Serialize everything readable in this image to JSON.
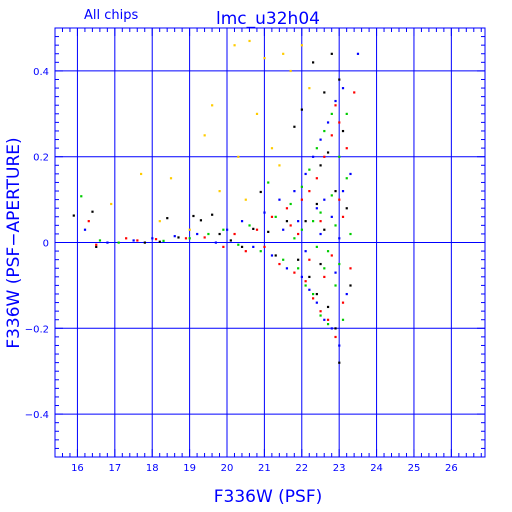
{
  "chart_data": {
    "type": "scatter",
    "title": "lmc_u32h04",
    "subtitle": "All chips",
    "xlabel": "F336W (PSF)",
    "ylabel": "F336W (PSF−APERTURE)",
    "xlim": [
      15.4,
      26.9
    ],
    "ylim": [
      -0.5,
      0.5
    ],
    "xticks": [
      16,
      17,
      18,
      19,
      20,
      21,
      22,
      23,
      24,
      25,
      26
    ],
    "xtick_labels": [
      "16",
      "17",
      "18",
      "19",
      "20",
      "21",
      "22",
      "23",
      "24",
      "25",
      "26"
    ],
    "yticks": [
      -0.4,
      -0.2,
      0,
      0.2,
      0.4
    ],
    "ytick_labels": [
      "−0.4",
      "−0.2",
      "0",
      "0.2",
      "0.4"
    ],
    "grid": true,
    "frame_color": "#0000ff",
    "series": [
      {
        "color": "#000000",
        "points": [
          [
            15.9,
            0.063
          ],
          [
            16.4,
            0.072
          ],
          [
            16.5,
            -0.01
          ],
          [
            17.8,
            0.0
          ],
          [
            18.2,
            0.002
          ],
          [
            18.4,
            0.057
          ],
          [
            18.7,
            0.012
          ],
          [
            19.1,
            0.062
          ],
          [
            19.3,
            0.052
          ],
          [
            19.6,
            0.065
          ],
          [
            19.8,
            0.02
          ],
          [
            20.1,
            0.005
          ],
          [
            20.4,
            -0.01
          ],
          [
            20.7,
            0.032
          ],
          [
            20.9,
            0.118
          ],
          [
            21.1,
            0.025
          ],
          [
            21.3,
            -0.03
          ],
          [
            21.6,
            0.05
          ],
          [
            21.8,
            0.27
          ],
          [
            22.0,
            0.31
          ],
          [
            22.2,
            -0.08
          ],
          [
            22.3,
            0.42
          ],
          [
            22.4,
            -0.12
          ],
          [
            22.5,
            0.18
          ],
          [
            22.6,
            0.35
          ],
          [
            22.7,
            -0.15
          ],
          [
            22.8,
            0.44
          ],
          [
            22.9,
            -0.2
          ],
          [
            23.0,
            -0.28
          ],
          [
            23.1,
            0.26
          ],
          [
            23.2,
            0.08
          ],
          [
            22.5,
            -0.05
          ],
          [
            22.9,
            0.12
          ],
          [
            22.1,
            0.05
          ],
          [
            22.6,
            0.03
          ],
          [
            23.3,
            -0.1
          ],
          [
            22.4,
            0.09
          ],
          [
            21.9,
            -0.04
          ],
          [
            22.7,
            0.21
          ],
          [
            23.0,
            0.38
          ]
        ]
      },
      {
        "color": "#ff0000",
        "points": [
          [
            16.3,
            0.05
          ],
          [
            16.5,
            -0.005
          ],
          [
            17.3,
            0.01
          ],
          [
            17.6,
            0.005
          ],
          [
            18.1,
            0.008
          ],
          [
            18.9,
            0.01
          ],
          [
            19.4,
            0.012
          ],
          [
            19.9,
            -0.01
          ],
          [
            20.2,
            0.02
          ],
          [
            20.5,
            -0.02
          ],
          [
            20.8,
            0.03
          ],
          [
            21.0,
            -0.01
          ],
          [
            21.2,
            0.06
          ],
          [
            21.4,
            -0.05
          ],
          [
            21.6,
            0.08
          ],
          [
            21.8,
            -0.07
          ],
          [
            22.0,
            0.1
          ],
          [
            22.1,
            -0.09
          ],
          [
            22.2,
            0.12
          ],
          [
            22.3,
            -0.13
          ],
          [
            22.4,
            0.15
          ],
          [
            22.5,
            -0.16
          ],
          [
            22.6,
            0.2
          ],
          [
            22.7,
            -0.18
          ],
          [
            22.8,
            0.25
          ],
          [
            22.9,
            -0.22
          ],
          [
            23.0,
            0.28
          ],
          [
            23.1,
            -0.14
          ],
          [
            23.2,
            0.22
          ],
          [
            23.3,
            -0.06
          ],
          [
            23.4,
            0.35
          ],
          [
            22.5,
            0.05
          ],
          [
            22.8,
            -0.03
          ],
          [
            21.9,
            0.02
          ],
          [
            22.2,
            -0.04
          ],
          [
            23.0,
            0.1
          ],
          [
            22.6,
            -0.08
          ],
          [
            21.7,
            0.04
          ],
          [
            22.9,
            0.32
          ],
          [
            23.1,
            0.06
          ]
        ]
      },
      {
        "color": "#00cc00",
        "points": [
          [
            16.1,
            0.108
          ],
          [
            16.6,
            0.005
          ],
          [
            17.1,
            0.0
          ],
          [
            18.3,
            0.004
          ],
          [
            19.0,
            0.01
          ],
          [
            19.5,
            0.02
          ],
          [
            19.9,
            0.03
          ],
          [
            20.3,
            -0.005
          ],
          [
            20.6,
            0.04
          ],
          [
            20.9,
            -0.02
          ],
          [
            21.1,
            0.14
          ],
          [
            21.3,
            0.06
          ],
          [
            21.5,
            -0.04
          ],
          [
            21.7,
            0.09
          ],
          [
            21.9,
            -0.06
          ],
          [
            22.0,
            0.13
          ],
          [
            22.1,
            -0.1
          ],
          [
            22.2,
            0.17
          ],
          [
            22.3,
            -0.12
          ],
          [
            22.4,
            0.22
          ],
          [
            22.5,
            -0.17
          ],
          [
            22.6,
            0.26
          ],
          [
            22.7,
            -0.19
          ],
          [
            22.8,
            0.3
          ],
          [
            22.9,
            -0.1
          ],
          [
            23.0,
            0.2
          ],
          [
            23.1,
            -0.18
          ],
          [
            23.2,
            0.15
          ],
          [
            23.3,
            0.02
          ],
          [
            22.5,
            0.07
          ],
          [
            22.7,
            -0.02
          ],
          [
            22.0,
            0.03
          ],
          [
            22.3,
            0.05
          ],
          [
            22.8,
            0.11
          ],
          [
            23.0,
            -0.05
          ],
          [
            21.8,
            0.01
          ],
          [
            22.6,
            -0.06
          ],
          [
            22.9,
            0.04
          ],
          [
            23.2,
            0.3
          ],
          [
            22.4,
            -0.01
          ]
        ]
      },
      {
        "color": "#0000ff",
        "points": [
          [
            16.2,
            0.03
          ],
          [
            16.8,
            0.0
          ],
          [
            17.5,
            0.005
          ],
          [
            18.0,
            0.01
          ],
          [
            18.6,
            0.015
          ],
          [
            19.2,
            0.02
          ],
          [
            19.7,
            0.0
          ],
          [
            20.0,
            0.03
          ],
          [
            20.4,
            0.05
          ],
          [
            20.7,
            -0.01
          ],
          [
            21.0,
            0.07
          ],
          [
            21.2,
            -0.03
          ],
          [
            21.4,
            0.1
          ],
          [
            21.6,
            -0.06
          ],
          [
            21.8,
            0.12
          ],
          [
            22.0,
            -0.08
          ],
          [
            22.1,
            0.16
          ],
          [
            22.2,
            -0.11
          ],
          [
            22.3,
            0.2
          ],
          [
            22.4,
            -0.14
          ],
          [
            22.5,
            0.24
          ],
          [
            22.6,
            -0.18
          ],
          [
            22.7,
            0.28
          ],
          [
            22.8,
            -0.2
          ],
          [
            22.9,
            0.33
          ],
          [
            23.0,
            -0.24
          ],
          [
            23.1,
            0.36
          ],
          [
            23.2,
            -0.12
          ],
          [
            23.3,
            0.16
          ],
          [
            23.5,
            0.44
          ],
          [
            22.5,
            0.02
          ],
          [
            22.8,
            0.06
          ],
          [
            22.1,
            -0.02
          ],
          [
            22.4,
            0.08
          ],
          [
            23.0,
            0.01
          ],
          [
            21.9,
            0.05
          ],
          [
            22.6,
            0.1
          ],
          [
            22.9,
            -0.07
          ],
          [
            23.1,
            0.12
          ],
          [
            21.5,
            0.03
          ]
        ]
      },
      {
        "color": "#ffcc00",
        "points": [
          [
            16.9,
            0.09
          ],
          [
            17.7,
            0.16
          ],
          [
            18.5,
            0.15
          ],
          [
            19.4,
            0.25
          ],
          [
            19.6,
            0.32
          ],
          [
            20.2,
            0.46
          ],
          [
            20.6,
            0.47
          ],
          [
            21.0,
            0.43
          ],
          [
            21.5,
            0.44
          ],
          [
            22.0,
            0.46
          ],
          [
            20.3,
            0.2
          ],
          [
            20.8,
            0.3
          ],
          [
            21.2,
            0.22
          ],
          [
            21.7,
            0.4
          ],
          [
            22.2,
            0.36
          ],
          [
            19.8,
            0.12
          ],
          [
            20.5,
            0.1
          ],
          [
            21.4,
            0.18
          ],
          [
            18.2,
            0.05
          ],
          [
            19.0,
            0.03
          ]
        ]
      }
    ]
  }
}
